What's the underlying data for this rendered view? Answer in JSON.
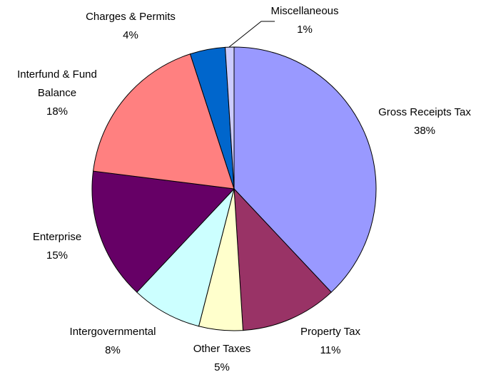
{
  "chart_data": {
    "type": "pie",
    "categories": [
      "Gross Receipts Tax",
      "Property Tax",
      "Other Taxes",
      "Intergovernmental",
      "Enterprise",
      "Interfund & Fund Balance",
      "Charges & Permits",
      "Miscellaneous"
    ],
    "values": [
      38,
      11,
      5,
      8,
      15,
      18,
      4,
      1
    ],
    "value_labels": [
      "38%",
      "11%",
      "5%",
      "8%",
      "15%",
      "18%",
      "4%",
      "1%"
    ],
    "colors": [
      "#9999ff",
      "#993366",
      "#ffffcc",
      "#ccffff",
      "#660066",
      "#ff8080",
      "#0066cc",
      "#ccccff"
    ]
  }
}
